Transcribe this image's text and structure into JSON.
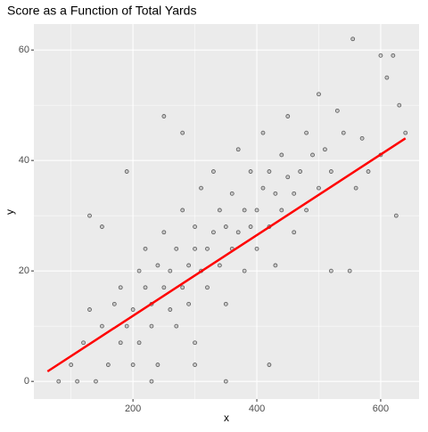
{
  "chart_data": {
    "type": "scatter",
    "title": "Score as a Function of Total Yards",
    "x_label": "x",
    "y_label": "y",
    "xlim": [
      40,
      662
    ],
    "ylim": [
      -3.2,
      64.7
    ],
    "xticks": [
      200,
      400,
      600
    ],
    "yticks": [
      0,
      20,
      40,
      60
    ],
    "x_minor_grid": [
      100,
      300,
      500
    ],
    "y_minor_grid": [
      10,
      30,
      50
    ],
    "grid": true,
    "series": [
      {
        "type": "scatter",
        "color": "#000000",
        "x": [
          80,
          100,
          120,
          130,
          140,
          150,
          160,
          170,
          180,
          180,
          190,
          200,
          200,
          210,
          210,
          220,
          220,
          230,
          230,
          240,
          240,
          250,
          250,
          260,
          260,
          270,
          270,
          280,
          280,
          290,
          290,
          300,
          300,
          300,
          310,
          310,
          320,
          320,
          330,
          330,
          340,
          340,
          350,
          350,
          360,
          360,
          370,
          370,
          380,
          380,
          390,
          390,
          400,
          400,
          410,
          410,
          420,
          420,
          430,
          430,
          440,
          440,
          450,
          450,
          460,
          460,
          470,
          480,
          480,
          490,
          500,
          500,
          510,
          520,
          530,
          540,
          555,
          560,
          570,
          580,
          600,
          610,
          620,
          625,
          630,
          640,
          150,
          190,
          250,
          300,
          350,
          420,
          230,
          280,
          520,
          550,
          600,
          130,
          110
        ],
        "values": [
          0,
          3,
          7,
          30,
          0,
          10,
          3,
          14,
          7,
          17,
          10,
          13,
          3,
          20,
          7,
          17,
          24,
          10,
          14,
          21,
          3,
          17,
          27,
          13,
          20,
          24,
          10,
          17,
          31,
          21,
          14,
          24,
          28,
          7,
          20,
          35,
          24,
          17,
          27,
          38,
          21,
          31,
          28,
          14,
          24,
          34,
          27,
          42,
          31,
          20,
          28,
          38,
          31,
          24,
          35,
          45,
          28,
          38,
          34,
          21,
          31,
          41,
          37,
          48,
          34,
          27,
          38,
          45,
          31,
          41,
          35,
          52,
          42,
          38,
          49,
          45,
          62,
          35,
          44,
          38,
          41,
          55,
          59,
          30,
          50,
          45,
          28,
          38,
          48,
          3,
          0,
          3,
          0,
          45,
          20,
          20,
          59,
          13,
          0
        ]
      },
      {
        "type": "line",
        "color": "#ff0000",
        "x": [
          62,
          640
        ],
        "values": [
          1.8,
          44
        ]
      }
    ]
  }
}
